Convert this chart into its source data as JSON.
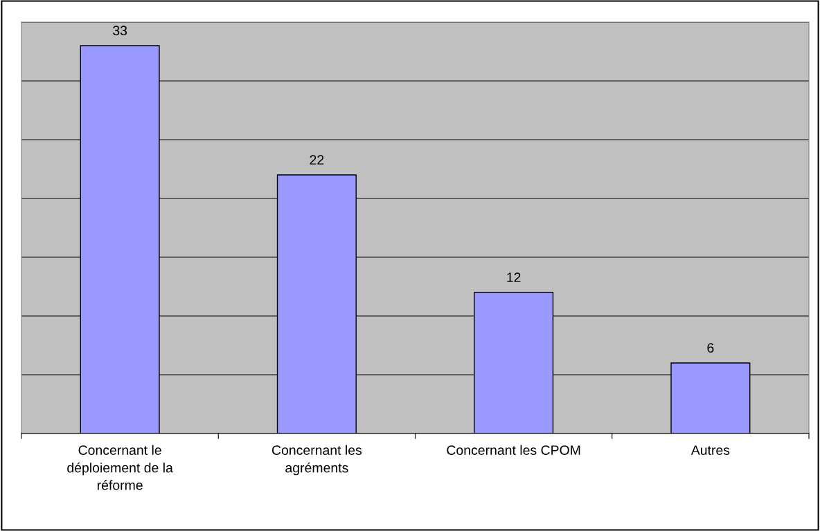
{
  "chart_data": {
    "type": "bar",
    "categories": [
      "Concernant le\ndéploiement de la\nréforme",
      "Concernant les\nagréments",
      "Concernant les CPOM",
      "Autres"
    ],
    "values": [
      33,
      22,
      12,
      6
    ],
    "color": "#9999ff",
    "ylim": [
      0,
      35
    ],
    "yticks": [
      {
        "value": 0,
        "label": null
      },
      {
        "value": 5,
        "label": null
      },
      {
        "value": 10,
        "label": null
      },
      {
        "value": 15,
        "label": null
      },
      {
        "value": 20,
        "label": null
      },
      {
        "value": 25,
        "label": null
      },
      {
        "value": 30,
        "label": null
      },
      {
        "value": 35,
        "label": null
      }
    ],
    "grid": "y",
    "tick_labels": "x",
    "data_labels": true
  }
}
